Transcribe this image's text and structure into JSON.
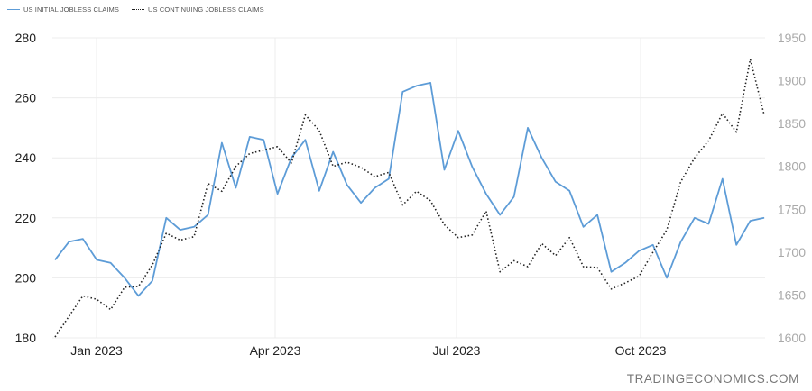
{
  "legend": {
    "initial_label": "US INITIAL JOBLESS CLAIMS",
    "continuing_label": "US CONTINUING JOBLESS CLAIMS"
  },
  "watermark": "TRADINGECONOMICS.COM",
  "colors": {
    "initial": "#5d9cd7",
    "continuing": "#222222",
    "grid": "#ececec"
  },
  "chart_data": {
    "type": "line",
    "title": "",
    "x_tick_labels": [
      "Jan 2023",
      "Apr 2023",
      "Jul 2023",
      "Oct 2023"
    ],
    "y_left": {
      "range": [
        180,
        280
      ],
      "ticks": [
        180,
        200,
        220,
        240,
        260,
        280
      ]
    },
    "y_right": {
      "range": [
        1600,
        1950
      ],
      "ticks": [
        1600,
        1650,
        1700,
        1750,
        1800,
        1850,
        1900,
        1950
      ]
    },
    "grid": true,
    "legend_position": "top-left",
    "series": [
      {
        "name": "US INITIAL JOBLESS CLAIMS",
        "axis": "left",
        "style": "solid",
        "values": [
          206,
          212,
          213,
          206,
          205,
          200,
          194,
          199,
          220,
          216,
          217,
          221,
          245,
          230,
          247,
          246,
          228,
          240,
          246,
          229,
          242,
          231,
          225,
          230,
          233,
          262,
          264,
          265,
          236,
          249,
          237,
          228,
          221,
          227,
          250,
          240,
          232,
          229,
          217,
          221,
          202,
          205,
          209,
          211,
          200,
          212,
          220,
          218,
          233,
          211,
          219,
          220
        ]
      },
      {
        "name": "US CONTINUING JOBLESS CLAIMS",
        "axis": "right",
        "style": "dotted",
        "values": [
          1601,
          1625,
          1649,
          1645,
          1633,
          1659,
          1660,
          1685,
          1722,
          1714,
          1718,
          1780,
          1771,
          1800,
          1815,
          1819,
          1823,
          1804,
          1860,
          1842,
          1800,
          1805,
          1799,
          1788,
          1793,
          1755,
          1771,
          1760,
          1732,
          1717,
          1720,
          1748,
          1677,
          1690,
          1683,
          1710,
          1696,
          1717,
          1683,
          1682,
          1657,
          1664,
          1672,
          1700,
          1726,
          1782,
          1810,
          1830,
          1862,
          1840,
          1925,
          1860
        ]
      }
    ]
  }
}
